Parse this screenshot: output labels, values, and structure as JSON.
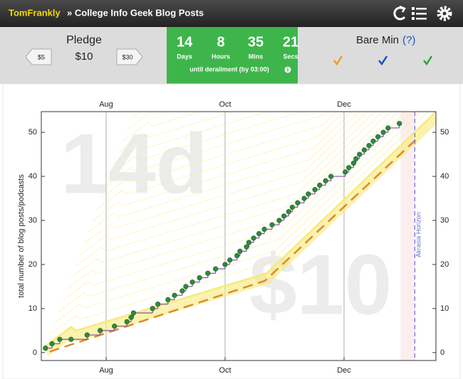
{
  "header": {
    "user": "TomFrankly",
    "goal": "» College Info Geek Blog Posts"
  },
  "pledge": {
    "label": "Pledge",
    "amount": "$10",
    "lower": "$5",
    "higher": "$30"
  },
  "countdown": {
    "units": [
      {
        "value": "14",
        "label": "Days"
      },
      {
        "value": "8",
        "label": "Hours"
      },
      {
        "value": "35",
        "label": "Mins"
      },
      {
        "value": "21",
        "label": "Secs"
      }
    ],
    "note": "until derailment (by 03:00)"
  },
  "bare_min": {
    "label": "Bare Min",
    "help": "(?)"
  },
  "chart_data": {
    "type": "line",
    "ylabel": "total number of blog posts/podcasts",
    "watermarks": [
      "14d",
      "$10"
    ],
    "xlim": [
      6.91,
      13.545
    ],
    "xticks": [
      {
        "value": 8,
        "label": "Aug"
      },
      {
        "value": 10,
        "label": "Oct"
      },
      {
        "value": 12,
        "label": "Dec"
      }
    ],
    "ylim": [
      -1.8,
      54.7
    ],
    "yticks": [
      0,
      10,
      20,
      30,
      40,
      50
    ],
    "grid": true,
    "horizon": {
      "label": "Akrasia Horizon",
      "x": 13.19,
      "color": "#6a6ae0"
    },
    "series": [
      {
        "style": "road",
        "color": "#f7ea7a",
        "x": [
          6.98,
          7.41,
          7.5,
          10.7,
          13.55
        ],
        "values": [
          1.5,
          5.8,
          5.0,
          18,
          54.7
        ]
      },
      {
        "style": "dashed",
        "color": "#e08a2a",
        "x": [
          7.05,
          10.67,
          13.22
        ],
        "values": [
          0.2,
          16.3,
          48.5
        ]
      },
      {
        "style": "points",
        "color": "#2e8b3a",
        "step_color": "#8c4fa0",
        "x": [
          6.98,
          7.09,
          7.22,
          7.41,
          7.68,
          7.9,
          8.14,
          8.35,
          8.42,
          8.46,
          8.78,
          8.87,
          9.04,
          9.15,
          9.28,
          9.34,
          9.45,
          9.57,
          9.71,
          9.84,
          10.0,
          10.08,
          10.2,
          10.25,
          10.36,
          10.4,
          10.48,
          10.57,
          10.66,
          10.79,
          10.91,
          10.99,
          11.07,
          11.13,
          11.22,
          11.33,
          11.4,
          11.51,
          11.59,
          11.69,
          11.78,
          12.02,
          12.08,
          12.16,
          12.2,
          12.26,
          12.34,
          12.42,
          12.49,
          12.57,
          12.66,
          12.74,
          12.93
        ],
        "values": [
          1,
          2,
          3,
          3,
          4,
          5,
          6,
          7,
          8,
          9,
          10,
          11,
          12,
          13,
          14,
          15,
          16,
          17,
          18,
          19,
          20,
          21,
          22,
          23,
          24,
          25,
          26,
          27,
          28,
          29,
          30,
          31,
          32,
          33,
          34,
          35,
          36,
          37,
          38,
          39,
          40,
          41,
          42,
          43,
          44,
          45,
          46,
          47,
          48,
          49,
          50,
          51,
          52
        ]
      }
    ]
  }
}
